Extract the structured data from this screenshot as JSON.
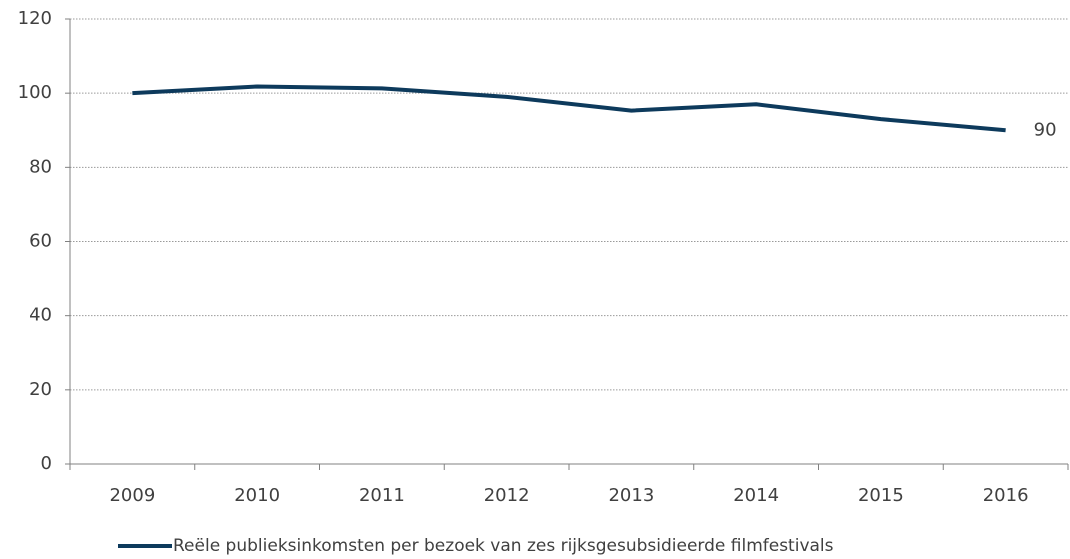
{
  "chart_data": {
    "type": "line",
    "categories": [
      "2009",
      "2010",
      "2011",
      "2012",
      "2013",
      "2014",
      "2015",
      "2016"
    ],
    "series": [
      {
        "name": "Reële publieksinkomsten per bezoek van zes rijksgesubsidieerde filmfestivals",
        "color": "#0d3a5c",
        "values": [
          100,
          101.8,
          101.3,
          99,
          95.3,
          97,
          93,
          90
        ]
      }
    ],
    "ylim": [
      0,
      120
    ],
    "yticks": [
      0,
      20,
      40,
      60,
      80,
      100,
      120
    ],
    "grid": true,
    "data_label": "last",
    "legend": "bottom"
  }
}
